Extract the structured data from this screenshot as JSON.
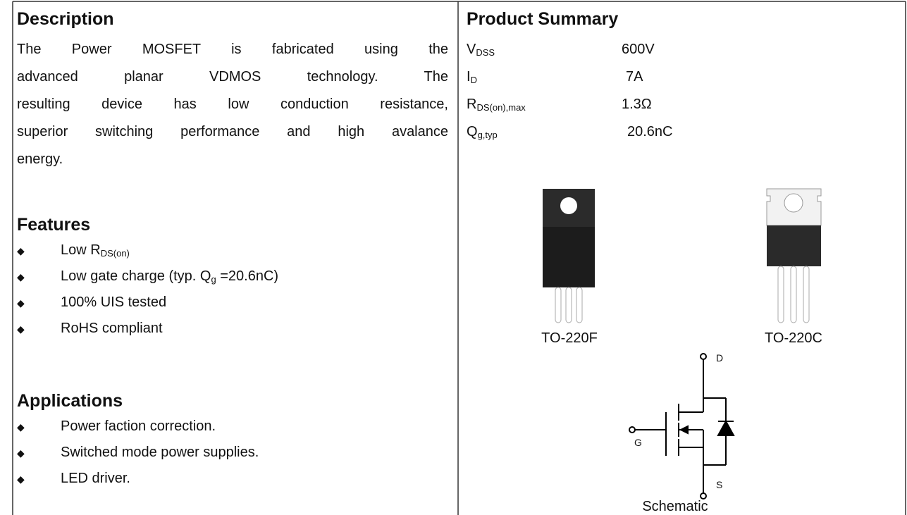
{
  "description": {
    "title": "Description",
    "lines": [
      "The Power MOSFET is fabricated using the",
      "advanced planar VDMOS technology. The",
      "resulting device has low conduction resistance,",
      "superior switching performance and high avalance",
      "energy."
    ]
  },
  "features": {
    "title": "Features",
    "items": [
      [
        {
          "text": "Low R"
        },
        {
          "sub": "DS(on)"
        }
      ],
      [
        {
          "text": "Low gate charge (typ. Q"
        },
        {
          "sub": "g"
        },
        {
          "text": " =20.6nC)"
        }
      ],
      [
        {
          "text": "100% UIS tested"
        }
      ],
      [
        {
          "text": "RoHS compliant"
        }
      ]
    ]
  },
  "applications": {
    "title": "Applications",
    "items": [
      "Power faction correction.",
      "Switched mode power supplies.",
      "LED driver."
    ]
  },
  "summary": {
    "title": "Product Summary",
    "rows": [
      {
        "symbol": "V",
        "sub": "DSS",
        "value": "600V"
      },
      {
        "symbol": "I",
        "sub": "D",
        "value": "7A"
      },
      {
        "symbol": "R",
        "sub": "DS(on),max",
        "value": "1.3Ω"
      },
      {
        "symbol": "Q",
        "sub": "g,typ",
        "value": "20.6nC"
      }
    ]
  },
  "packages": [
    "TO-220F",
    "TO-220C"
  ],
  "schematic": {
    "label": "Schematic",
    "pins": {
      "drain": "D",
      "gate": "G",
      "source": "S"
    }
  }
}
